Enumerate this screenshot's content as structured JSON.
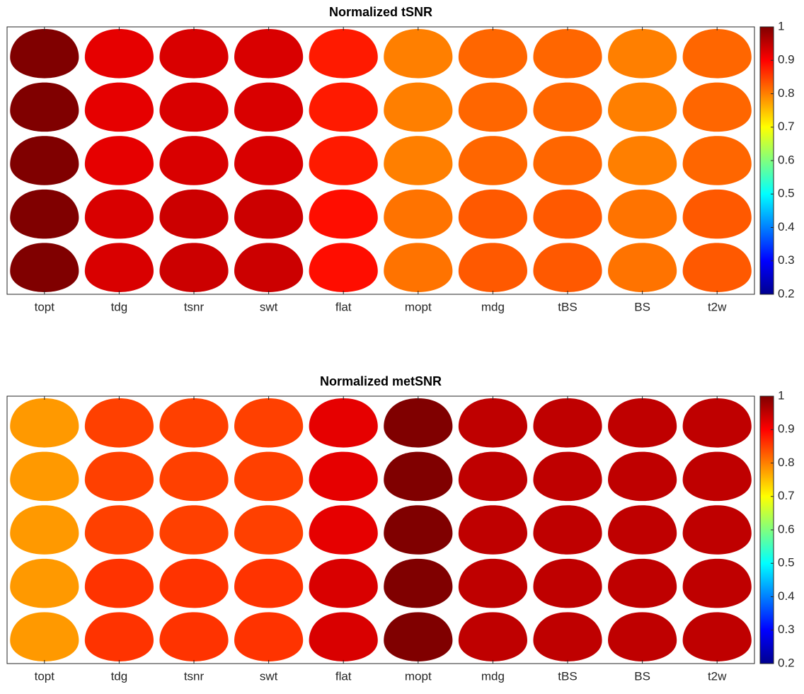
{
  "chart_data": [
    {
      "type": "heatmap-grid",
      "title": "Normalized tSNR",
      "categories": [
        "topt",
        "tdg",
        "tsnr",
        "swt",
        "flat",
        "mopt",
        "mdg",
        "tBS",
        "BS",
        "t2w"
      ],
      "values": [
        [
          1,
          0.92,
          0.93,
          0.93,
          0.88,
          0.8,
          0.82,
          0.82,
          0.8,
          0.82
        ],
        [
          1,
          0.92,
          0.93,
          0.93,
          0.88,
          0.8,
          0.82,
          0.82,
          0.8,
          0.82
        ],
        [
          1,
          0.92,
          0.93,
          0.93,
          0.88,
          0.8,
          0.82,
          0.82,
          0.8,
          0.82
        ],
        [
          1,
          0.93,
          0.94,
          0.94,
          0.89,
          0.81,
          0.83,
          0.83,
          0.81,
          0.83
        ],
        [
          1,
          0.93,
          0.94,
          0.94,
          0.89,
          0.81,
          0.83,
          0.83,
          0.81,
          0.83
        ]
      ],
      "colormap": "jet",
      "clim": [
        0.2,
        1
      ],
      "cticks": [
        0.2,
        0.3,
        0.4,
        0.5,
        0.6,
        0.7,
        0.8,
        0.9,
        1
      ]
    },
    {
      "type": "heatmap-grid",
      "title": "Normalized metSNR",
      "categories": [
        "topt",
        "tdg",
        "tsnr",
        "swt",
        "flat",
        "mopt",
        "mdg",
        "tBS",
        "BS",
        "t2w"
      ],
      "values": [
        [
          0.78,
          0.85,
          0.85,
          0.85,
          0.92,
          1,
          0.95,
          0.95,
          0.95,
          0.95
        ],
        [
          0.78,
          0.85,
          0.85,
          0.85,
          0.92,
          1,
          0.95,
          0.95,
          0.95,
          0.95
        ],
        [
          0.78,
          0.85,
          0.85,
          0.85,
          0.92,
          1,
          0.95,
          0.95,
          0.95,
          0.95
        ],
        [
          0.78,
          0.86,
          0.86,
          0.86,
          0.93,
          1,
          0.95,
          0.95,
          0.95,
          0.95
        ],
        [
          0.78,
          0.86,
          0.86,
          0.86,
          0.93,
          1,
          0.95,
          0.95,
          0.95,
          0.95
        ]
      ],
      "colormap": "jet",
      "clim": [
        0.2,
        1
      ],
      "cticks": [
        0.2,
        0.3,
        0.4,
        0.5,
        0.6,
        0.7,
        0.8,
        0.9,
        1
      ]
    }
  ]
}
